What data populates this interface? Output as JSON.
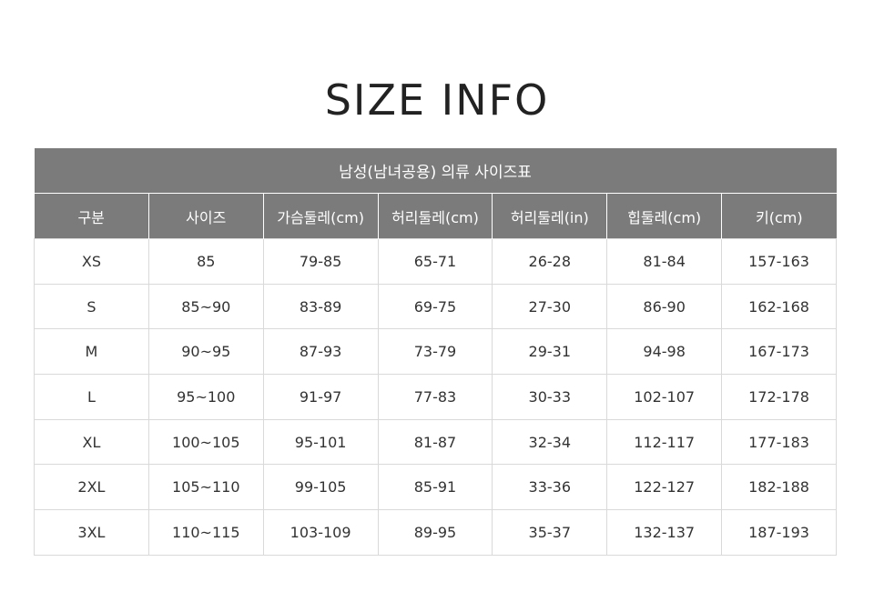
{
  "title": "SIZE INFO",
  "table": {
    "caption": "남성(남녀공용) 의류 사이즈표",
    "headers": [
      "구분",
      "사이즈",
      "가슴둘레(cm)",
      "허리둘레(cm)",
      "허리둘레(in)",
      "힙둘레(cm)",
      "키(cm)"
    ],
    "rows": [
      [
        "XS",
        "85",
        "79-85",
        "65-71",
        "26-28",
        "81-84",
        "157-163"
      ],
      [
        "S",
        "85~90",
        "83-89",
        "69-75",
        "27-30",
        "86-90",
        "162-168"
      ],
      [
        "M",
        "90~95",
        "87-93",
        "73-79",
        "29-31",
        "94-98",
        "167-173"
      ],
      [
        "L",
        "95~100",
        "91-97",
        "77-83",
        "30-33",
        "102-107",
        "172-178"
      ],
      [
        "XL",
        "100~105",
        "95-101",
        "81-87",
        "32-34",
        "112-117",
        "177-183"
      ],
      [
        "2XL",
        "105~110",
        "99-105",
        "85-91",
        "33-36",
        "122-127",
        "182-188"
      ],
      [
        "3XL",
        "110~115",
        "103-109",
        "89-95",
        "35-37",
        "132-137",
        "187-193"
      ]
    ]
  },
  "colors": {
    "header_background": "#7b7b7b",
    "header_text": "#ffffff",
    "border": "#d9d9d9",
    "title_text": "#222222"
  }
}
